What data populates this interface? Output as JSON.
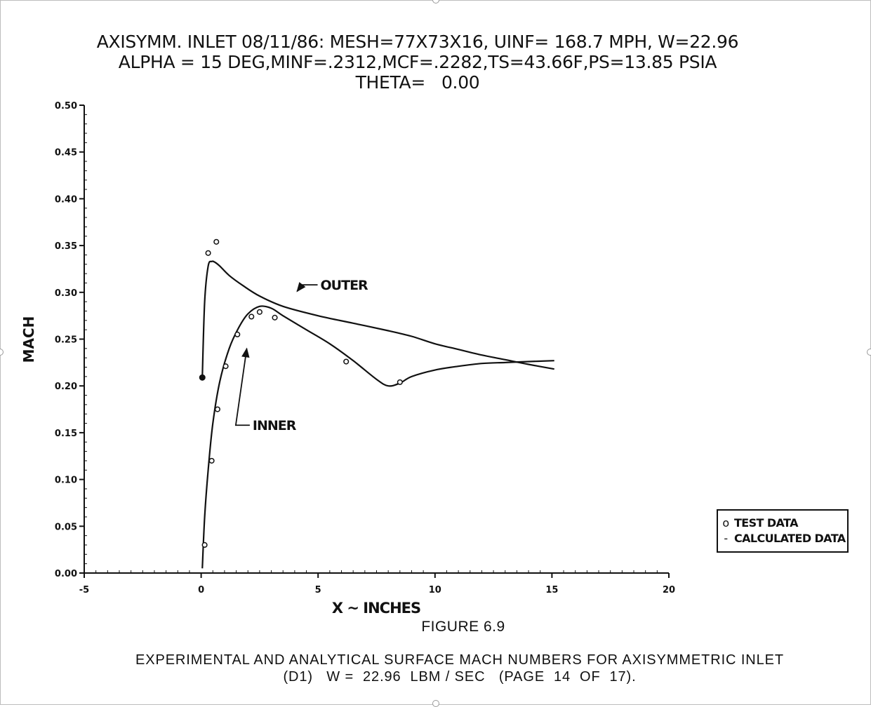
{
  "header": {
    "line1": "AXISYMM. INLET 08/11/86: MESH=77X73X16, UINF= 168.7 MPH, W=22.96",
    "line2": "ALPHA = 15 DEG,MINF=.2312,MCF=.2282,TS=43.66F,PS=13.85 PSIA",
    "line3": "THETA=   0.00"
  },
  "figure_label": "FIGURE 6.9",
  "caption": {
    "line1": "EXPERIMENTAL AND ANALYTICAL SURFACE MACH NUMBERS FOR AXISYMMETRIC INLET",
    "line2": "(D1)   W =  22.96  LBM / SEC   (PAGE  14  OF  17)."
  },
  "legend": {
    "test_symbol": "o",
    "test_label": "TEST DATA",
    "calc_symbol": "-",
    "calc_label": "CALCULATED DATA"
  },
  "chart_data": {
    "type": "line",
    "title": "",
    "xlabel": "X ~ INCHES",
    "ylabel": "MACH",
    "xlim": [
      -5,
      20
    ],
    "ylim": [
      0.0,
      0.5
    ],
    "x_ticks": [
      -5,
      0,
      5,
      10,
      15,
      20
    ],
    "x_tick_labels": [
      "-5",
      "0",
      "5",
      "10",
      "15",
      "20"
    ],
    "y_ticks": [
      0.0,
      0.05,
      0.1,
      0.15,
      0.2,
      0.25,
      0.3,
      0.35,
      0.4,
      0.45,
      0.5
    ],
    "y_tick_labels": [
      "0.00",
      "0.05",
      "0.10",
      "0.15",
      "0.20",
      "0.25",
      "0.30",
      "0.35",
      "0.40",
      "0.45",
      "0.50"
    ],
    "grid": false,
    "legend_position": "right",
    "series": [
      {
        "name": "OUTER",
        "kind": "calculated",
        "x": [
          0.05,
          0.15,
          0.3,
          0.45,
          0.6,
          0.8,
          1.2,
          1.8,
          2.5,
          3.5,
          5.0,
          6.5,
          8.0,
          9.0,
          10.0,
          11.0,
          12.0,
          13.0,
          14.0,
          15.1
        ],
        "y": [
          0.21,
          0.29,
          0.328,
          0.333,
          0.332,
          0.328,
          0.318,
          0.307,
          0.296,
          0.285,
          0.275,
          0.267,
          0.259,
          0.253,
          0.245,
          0.239,
          0.233,
          0.228,
          0.223,
          0.218
        ]
      },
      {
        "name": "INNER",
        "kind": "calculated",
        "x": [
          0.05,
          0.15,
          0.3,
          0.5,
          0.8,
          1.2,
          1.6,
          2.0,
          2.5,
          3.0,
          3.5,
          4.5,
          5.5,
          6.5,
          7.5,
          8.0,
          8.5,
          9.0,
          10.0,
          11.0,
          12.0,
          13.0,
          14.0,
          15.1
        ],
        "y": [
          0.005,
          0.06,
          0.11,
          0.16,
          0.205,
          0.24,
          0.262,
          0.277,
          0.285,
          0.283,
          0.275,
          0.26,
          0.245,
          0.227,
          0.207,
          0.2,
          0.203,
          0.21,
          0.217,
          0.221,
          0.224,
          0.225,
          0.226,
          0.227
        ]
      },
      {
        "name": "TEST DATA",
        "kind": "test",
        "x": [
          0.15,
          0.3,
          0.45,
          0.65,
          0.7,
          1.05,
          1.55,
          2.15,
          2.5,
          3.15,
          6.2,
          8.5
        ],
        "y": [
          0.03,
          0.342,
          0.12,
          0.354,
          0.175,
          0.221,
          0.255,
          0.274,
          0.279,
          0.273,
          0.226,
          0.204
        ]
      },
      {
        "name": "",
        "kind": "filled-marker",
        "x": [
          0.05
        ],
        "y": [
          0.209
        ]
      }
    ],
    "annotations": [
      {
        "text": "OUTER",
        "x": 5.1,
        "y": 0.308,
        "arrow_to": [
          4.1,
          0.301
        ]
      },
      {
        "text": "INNER",
        "x": 2.2,
        "y": 0.158,
        "arrow_to": [
          1.95,
          0.24
        ]
      }
    ]
  }
}
